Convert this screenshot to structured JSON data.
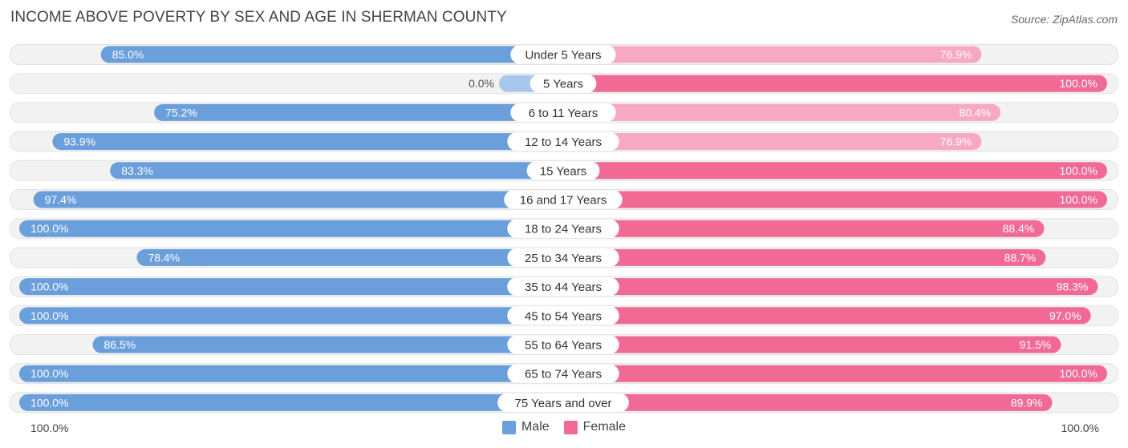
{
  "title": "INCOME ABOVE POVERTY BY SEX AND AGE IN SHERMAN COUNTY",
  "source": "Source: ZipAtlas.com",
  "colors": {
    "male": "#6a9fdc",
    "male_light": "#a7c7ec",
    "female": "#f06a95",
    "female_light": "#f7a9c3",
    "track": "#eeeeee"
  },
  "chart_data": {
    "type": "bar",
    "orientation": "horizontal-diverging",
    "title": "INCOME ABOVE POVERTY BY SEX AND AGE IN SHERMAN COUNTY",
    "categories": [
      "Under 5 Years",
      "5 Years",
      "6 to 11 Years",
      "12 to 14 Years",
      "15 Years",
      "16 and 17 Years",
      "18 to 24 Years",
      "25 to 34 Years",
      "35 to 44 Years",
      "45 to 54 Years",
      "55 to 64 Years",
      "65 to 74 Years",
      "75 Years and over"
    ],
    "series": [
      {
        "name": "Male",
        "values": [
          85.0,
          0.0,
          75.2,
          93.9,
          83.3,
          97.4,
          100.0,
          78.4,
          100.0,
          100.0,
          86.5,
          100.0,
          100.0
        ],
        "labels": [
          "85.0%",
          "0.0%",
          "75.2%",
          "93.9%",
          "83.3%",
          "97.4%",
          "100.0%",
          "78.4%",
          "100.0%",
          "100.0%",
          "86.5%",
          "100.0%",
          "100.0%"
        ]
      },
      {
        "name": "Female",
        "values": [
          76.9,
          100.0,
          80.4,
          76.9,
          100.0,
          100.0,
          88.4,
          88.7,
          98.3,
          97.0,
          91.5,
          100.0,
          89.9
        ],
        "labels": [
          "76.9%",
          "100.0%",
          "80.4%",
          "76.9%",
          "100.0%",
          "100.0%",
          "88.4%",
          "88.7%",
          "98.3%",
          "97.0%",
          "91.5%",
          "100.0%",
          "89.9%"
        ]
      }
    ],
    "xlim": [
      0,
      100
    ],
    "axis_left_label": "100.0%",
    "axis_right_label": "100.0%",
    "legend": [
      "Male",
      "Female"
    ],
    "legend_position": "bottom-center"
  }
}
